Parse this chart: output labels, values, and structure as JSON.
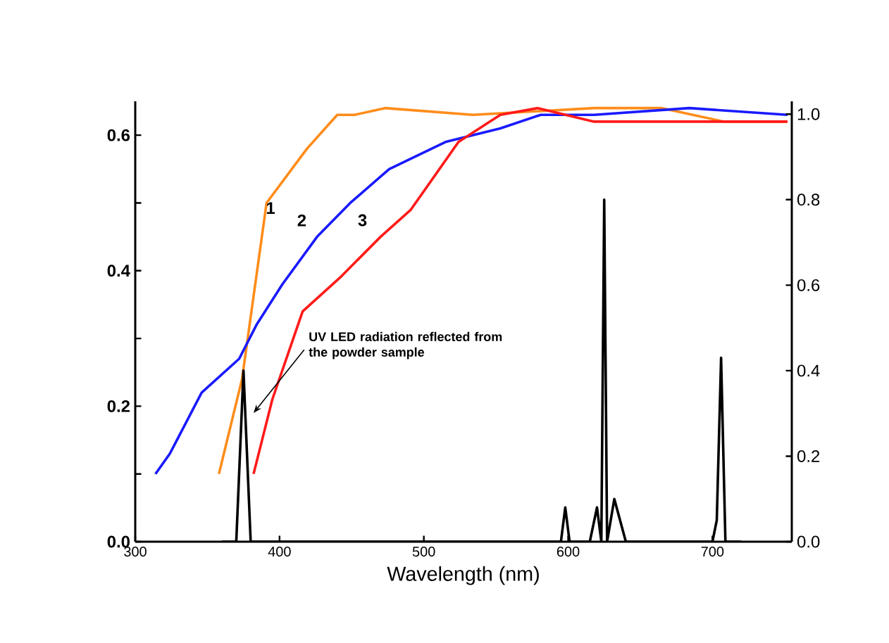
{
  "chart_data": {
    "type": "line",
    "xlabel": "Wavelength (nm)",
    "xlim": [
      300,
      755
    ],
    "xticks": [
      300,
      400,
      500,
      600,
      700
    ],
    "ylim": [
      0,
      0.65
    ],
    "yticks": [
      {
        "value": 0,
        "label": "0.0"
      },
      {
        "value": 0.1,
        "label": null
      },
      {
        "value": 0.2,
        "label": "0.2"
      },
      {
        "value": 0.3,
        "label": null
      },
      {
        "value": 0.4,
        "label": "0.4"
      },
      {
        "value": 0.5,
        "label": null
      },
      {
        "value": 0.6,
        "label": "0.6"
      }
    ],
    "y2lim": [
      0,
      1.03
    ],
    "y2ticks": [
      {
        "value": 0,
        "label": "0.0"
      },
      {
        "value": 0.2,
        "label": "0.2"
      },
      {
        "value": 0.4,
        "label": "0.4"
      },
      {
        "value": 0.6,
        "label": "0.6"
      },
      {
        "value": 0.8,
        "label": "0.8"
      },
      {
        "value": 1.0,
        "label": "1.0"
      }
    ],
    "series": [
      {
        "name": "1",
        "color": "#ff8c1a",
        "x": [
          358,
          374,
          391,
          419,
          440,
          452,
          473,
          534,
          618,
          665,
          708,
          752
        ],
        "values": [
          0.1,
          0.24,
          0.5,
          0.58,
          0.63,
          0.63,
          0.64,
          0.63,
          0.64,
          0.64,
          0.62,
          0.62
        ]
      },
      {
        "name": "2",
        "color": "#1a1aff",
        "x": [
          314,
          324,
          346,
          372,
          384,
          402,
          426,
          449,
          476,
          515,
          553,
          581,
          618,
          684,
          752
        ],
        "values": [
          0.1,
          0.13,
          0.22,
          0.27,
          0.32,
          0.38,
          0.45,
          0.5,
          0.55,
          0.59,
          0.61,
          0.63,
          0.63,
          0.64,
          0.63
        ]
      },
      {
        "name": "3",
        "color": "#ff1a1a",
        "x": [
          382,
          395,
          416,
          442,
          470,
          491,
          524,
          553,
          579,
          618,
          675,
          752
        ],
        "values": [
          0.1,
          0.21,
          0.34,
          0.39,
          0.45,
          0.49,
          0.59,
          0.63,
          0.64,
          0.62,
          0.62,
          0.62
        ]
      },
      {
        "color": "#000000",
        "axis": "y2",
        "x": [
          360,
          370,
          375,
          380,
          390,
          595,
          598,
          601,
          615,
          620,
          623,
          625,
          627,
          632,
          640,
          700,
          703,
          706,
          709,
          720
        ],
        "values": [
          0,
          0,
          0.4,
          0,
          0,
          0,
          0.08,
          0,
          0,
          0.08,
          0,
          0.8,
          0,
          0.1,
          0,
          0,
          0.05,
          0.43,
          0,
          0
        ]
      }
    ],
    "annotations": [
      "UV LED radiation reflected from the powder sample"
    ]
  }
}
